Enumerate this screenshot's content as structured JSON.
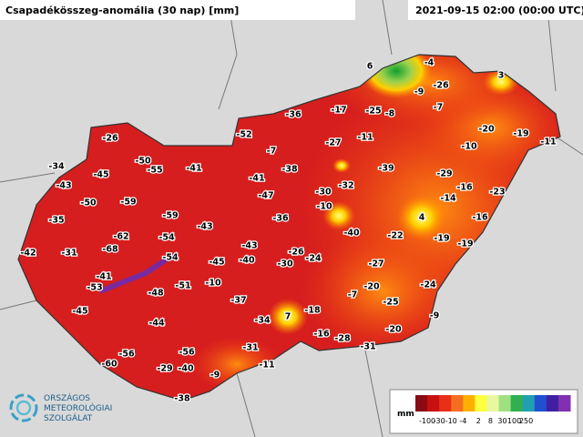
{
  "header": {
    "title": "Csapadékösszeg-anomália (30 nap) [mm]",
    "timestamp": "2021-09-15 02:00 (00:00 UTC)"
  },
  "stations": [
    -26,
    -34,
    -45,
    -50,
    -55,
    -41,
    -43,
    -50,
    -59,
    -35,
    -59,
    -43,
    -62,
    -54,
    -68,
    -54,
    -42,
    -31,
    -41,
    -53,
    -48,
    -51,
    -45,
    -43,
    -40,
    -10,
    -37,
    -45,
    -44,
    -34,
    7,
    -18,
    -16,
    -28,
    -31,
    -31,
    -56,
    -56,
    -60,
    -29,
    -40,
    -11,
    -9,
    -38,
    -52,
    -7,
    -36,
    -17,
    -25,
    -8,
    -27,
    -11,
    -38,
    -41,
    -47,
    -30,
    -32,
    -10,
    -36,
    -40,
    -26,
    -24,
    -30,
    -22,
    -27,
    -7,
    -20,
    -25,
    -24,
    -9,
    -20,
    -39,
    -29,
    -14,
    -16,
    4,
    -16,
    -19,
    -19,
    -23,
    -10,
    -20,
    -19,
    -11,
    6,
    -4,
    -9,
    -26,
    -7,
    3
  ],
  "legend": {
    "unit": "mm",
    "labels": [
      -100,
      -30,
      -10,
      -4,
      2,
      8,
      30,
      100,
      250
    ]
  },
  "logo": {
    "lines": [
      "ORSZÁGOS",
      "METEOROLÓGIAI",
      "SZOLGÁLAT"
    ]
  }
}
